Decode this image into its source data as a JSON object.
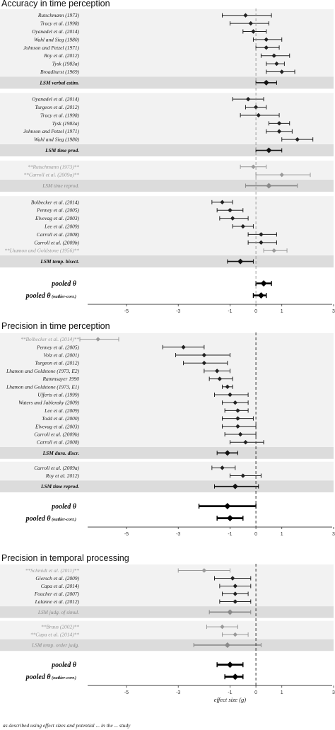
{
  "chart_data": [
    {
      "type": "forest",
      "title": "Accuracy in time perception",
      "xlim": [
        -6.5,
        3
      ],
      "xticks": [
        -5,
        -3,
        -1,
        0,
        1,
        3
      ],
      "xlabel": "",
      "groups": [
        {
          "rows": [
            {
              "label": "Rutschmann (1973)",
              "est": -0.4,
              "lo": -1.3,
              "hi": 0.6,
              "style": "normal"
            },
            {
              "label": "Tracy et al. (1998)",
              "est": -0.2,
              "lo": -1.0,
              "hi": 0.5,
              "style": "normal"
            },
            {
              "label": "Oyanadel et al. (2014)",
              "est": -0.1,
              "lo": -0.5,
              "hi": 0.4,
              "style": "normal"
            },
            {
              "label": "Wahl and Sieg (1980)",
              "est": 0.4,
              "lo": -0.1,
              "hi": 1.0,
              "style": "normal"
            },
            {
              "label": "Johnson and Petzel (1971)",
              "est": 0.4,
              "lo": 0.0,
              "hi": 0.9,
              "style": "normal"
            },
            {
              "label": "Roy et al. (2012)",
              "est": 0.7,
              "lo": 0.2,
              "hi": 1.3,
              "style": "normal"
            },
            {
              "label": "Tysk (1983a)",
              "est": 0.8,
              "lo": 0.4,
              "hi": 1.1,
              "style": "normal"
            },
            {
              "label": "Broadhurst (1969)",
              "est": 1.0,
              "lo": 0.4,
              "hi": 1.5,
              "style": "normal"
            }
          ],
          "summary": {
            "label": "LSM verbal estim.",
            "est": 0.4,
            "lo": 0.0,
            "hi": 0.8,
            "style": "lsm"
          }
        },
        {
          "rows": [
            {
              "label": "Oyanadel et al. (2014)",
              "est": -0.3,
              "lo": -0.9,
              "hi": 0.3,
              "style": "normal"
            },
            {
              "label": "Turgeon et al. (2012)",
              "est": 0.0,
              "lo": -0.4,
              "hi": 0.4,
              "style": "normal"
            },
            {
              "label": "Tracy et al. (1998)",
              "est": 0.1,
              "lo": -0.6,
              "hi": 0.9,
              "style": "normal"
            },
            {
              "label": "Tysk (1983a)",
              "est": 0.9,
              "lo": 0.5,
              "hi": 1.3,
              "style": "normal"
            },
            {
              "label": "Johnson and Petzel (1971)",
              "est": 0.9,
              "lo": 0.4,
              "hi": 1.4,
              "style": "normal"
            },
            {
              "label": "Wahl and Sieg (1980)",
              "est": 1.6,
              "lo": 1.0,
              "hi": 2.2,
              "style": "normal"
            }
          ],
          "summary": {
            "label": "LSM time prod.",
            "est": 0.5,
            "lo": 0.0,
            "hi": 1.0,
            "style": "lsm"
          }
        },
        {
          "rows": [
            {
              "label": "**Rutschmann (1973)**",
              "est": -0.1,
              "lo": -0.6,
              "hi": 0.4,
              "style": "outlier"
            },
            {
              "label": "**Carroll et al. (2009a)**",
              "est": 1.0,
              "lo": 0.0,
              "hi": 2.1,
              "style": "outlier"
            }
          ],
          "summary": {
            "label": "LSM time reprod.",
            "est": 0.5,
            "lo": -0.4,
            "hi": 1.6,
            "style": "lsm-grey"
          }
        },
        {
          "rows": [
            {
              "label": "Bolbecker et al. (2014)",
              "est": -1.3,
              "lo": -1.7,
              "hi": -0.9,
              "style": "normal"
            },
            {
              "label": "Penney et al. (2005)",
              "est": -1.0,
              "lo": -1.5,
              "hi": -0.5,
              "style": "normal"
            },
            {
              "label": "Elvevag et al. (2003)",
              "est": -0.9,
              "lo": -1.4,
              "hi": -0.3,
              "style": "normal"
            },
            {
              "label": "Lee et al. (2009)",
              "est": -0.5,
              "lo": -0.9,
              "hi": -0.1,
              "style": "normal"
            },
            {
              "label": "Carroll et al. (2008)",
              "est": 0.2,
              "lo": -0.3,
              "hi": 0.8,
              "style": "normal"
            },
            {
              "label": "Carroll et al. (2009b)",
              "est": 0.2,
              "lo": -0.3,
              "hi": 0.8,
              "style": "normal"
            },
            {
              "label": "**Lhamon and Goldstone (1956)**",
              "est": 0.7,
              "lo": 0.3,
              "hi": 1.2,
              "style": "outlier"
            }
          ],
          "summary": {
            "label": "LSM temp. bisect.",
            "est": -0.6,
            "lo": -1.1,
            "hi": -0.1,
            "style": "lsm"
          }
        }
      ],
      "pooled": [
        {
          "label": "pooled",
          "suffix": "",
          "est": 0.3,
          "lo": 0.0,
          "hi": 0.6
        },
        {
          "label": "pooled",
          "suffix": "(outlier-corr.)",
          "est": 0.2,
          "lo": -0.1,
          "hi": 0.4
        }
      ]
    },
    {
      "type": "forest",
      "title": "Precision in time perception",
      "xlim": [
        -6.5,
        3
      ],
      "xticks": [
        -5,
        -3,
        -1,
        0,
        1,
        3
      ],
      "xlabel": "",
      "groups": [
        {
          "rows": [
            {
              "label": "**Bolbecker et al. (2014)**",
              "est": -6.1,
              "lo": -6.8,
              "hi": -5.3,
              "style": "outlier"
            },
            {
              "label": "Penney et al. (2005)",
              "est": -2.8,
              "lo": -3.6,
              "hi": -2.0,
              "style": "normal"
            },
            {
              "label": "Volz et al. (2001)",
              "est": -2.0,
              "lo": -3.1,
              "hi": -1.0,
              "style": "normal"
            },
            {
              "label": "Turgeon et al. (2012)",
              "est": -2.0,
              "lo": -2.8,
              "hi": -1.1,
              "style": "normal"
            },
            {
              "label": "Lhamon and Goldstone (1973, E2)",
              "est": -1.5,
              "lo": -2.0,
              "hi": -1.0,
              "style": "normal"
            },
            {
              "label": "Rammsayer 1990",
              "est": -1.4,
              "lo": -1.8,
              "hi": -0.9,
              "style": "normal"
            },
            {
              "label": "Lhamon and Goldstone (1973, E1)",
              "est": -1.1,
              "lo": -1.3,
              "hi": -0.9,
              "style": "normal"
            },
            {
              "label": "Ufferts et al. (1999)",
              "est": -1.0,
              "lo": -1.6,
              "hi": -0.3,
              "style": "normal"
            },
            {
              "label": "Waters and Jablensky (2009)",
              "est": -0.8,
              "lo": -1.3,
              "hi": -0.3,
              "style": "normal"
            },
            {
              "label": "Lee et al. (2009)",
              "est": -0.7,
              "lo": -1.2,
              "hi": -0.3,
              "style": "normal"
            },
            {
              "label": "Todd et al. (2000)",
              "est": -0.7,
              "lo": -1.3,
              "hi": -0.1,
              "style": "normal"
            },
            {
              "label": "Elvevag et al. (2003)",
              "est": -0.7,
              "lo": -1.3,
              "hi": 0.0,
              "style": "normal"
            },
            {
              "label": "Carroll et al. (2009b)",
              "est": -0.6,
              "lo": -1.2,
              "hi": 0.0,
              "style": "normal"
            },
            {
              "label": "Carroll et al. (2008)",
              "est": -0.4,
              "lo": -1.0,
              "hi": 0.3,
              "style": "normal"
            }
          ],
          "summary": {
            "label": "LSM dura. discr.",
            "est": -1.1,
            "lo": -1.5,
            "hi": -0.7,
            "style": "lsm"
          }
        },
        {
          "rows": [
            {
              "label": "Carroll et al. (2009a)",
              "est": -1.3,
              "lo": -1.7,
              "hi": -0.8,
              "style": "normal"
            },
            {
              "label": "Roy et al. 2012)",
              "est": -0.5,
              "lo": -1.0,
              "hi": 0.2,
              "style": "normal"
            }
          ],
          "summary": {
            "label": "LSM time reprod.",
            "est": -0.8,
            "lo": -1.6,
            "hi": 0.1,
            "style": "lsm"
          }
        }
      ],
      "pooled": [
        {
          "label": "pooled",
          "suffix": "",
          "est": -1.1,
          "lo": -2.2,
          "hi": 0.0
        },
        {
          "label": "pooled",
          "suffix": "(outlier-corr.)",
          "est": -1.0,
          "lo": -1.5,
          "hi": -0.5
        }
      ]
    },
    {
      "type": "forest",
      "title": "Precision in temporal processing",
      "xlim": [
        -6.5,
        3
      ],
      "xticks": [
        -5,
        -3,
        -1,
        0,
        1,
        3
      ],
      "xlabel": "effect size (g)",
      "groups": [
        {
          "rows": [
            {
              "label": "**Schmidt et al. (2011)**",
              "est": -2.0,
              "lo": -3.0,
              "hi": -1.0,
              "style": "outlier"
            },
            {
              "label": "Giersch et al. (2009)",
              "est": -0.9,
              "lo": -1.6,
              "hi": -0.2,
              "style": "normal"
            },
            {
              "label": "Capa et al. (2014)",
              "est": -0.8,
              "lo": -1.4,
              "hi": -0.2,
              "style": "normal"
            },
            {
              "label": "Foucher et al. (2007)",
              "est": -0.8,
              "lo": -1.3,
              "hi": -0.3,
              "style": "normal"
            },
            {
              "label": "Lalanne et al. (2012)",
              "est": -0.8,
              "lo": -1.4,
              "hi": -0.2,
              "style": "normal"
            }
          ],
          "summary": {
            "label": "LSM judg. of simul.",
            "est": -1.0,
            "lo": -1.8,
            "hi": -0.2,
            "style": "lsm-grey"
          }
        },
        {
          "rows": [
            {
              "label": "**Braus (2002)**",
              "est": -1.3,
              "lo": -1.9,
              "hi": -0.7,
              "style": "outlier"
            },
            {
              "label": "**Capa et al. (2014)**",
              "est": -0.8,
              "lo": -1.3,
              "hi": -0.3,
              "style": "outlier"
            }
          ],
          "summary": {
            "label": "LSM temp. order judg.",
            "est": -1.1,
            "lo": -2.4,
            "hi": 0.2,
            "style": "lsm-grey"
          }
        }
      ],
      "pooled": [
        {
          "label": "pooled",
          "suffix": "",
          "est": -1.0,
          "lo": -1.5,
          "hi": -0.5
        },
        {
          "label": "pooled",
          "suffix": "(outlier-corr.)",
          "est": -0.8,
          "lo": -1.2,
          "hi": -0.5
        }
      ]
    }
  ],
  "footer_text": "as described using effect sizes and potential ... in the ... study"
}
